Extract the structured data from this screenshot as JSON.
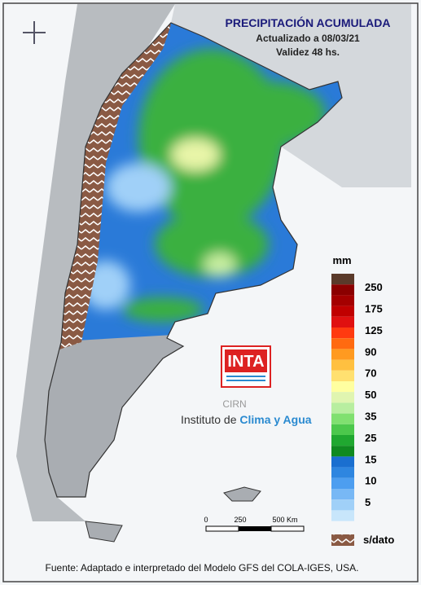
{
  "header": {
    "title": "PRECIPITACIÓN ACUMULADA",
    "updated": "Actualizado a 08/03/21",
    "validity": "Validez 48 hs."
  },
  "legend": {
    "unit": "mm",
    "labels": [
      "250",
      "175",
      "125",
      "90",
      "70",
      "50",
      "35",
      "25",
      "15",
      "10",
      "5"
    ],
    "colors": [
      "#5a3a2a",
      "#8b0000",
      "#a40000",
      "#c00000",
      "#e01010",
      "#ff3a10",
      "#ff6a10",
      "#ff9a20",
      "#ffc040",
      "#ffe070",
      "#ffffa0",
      "#e0f5b0",
      "#b8eea0",
      "#80e070",
      "#4cc84c",
      "#20a830",
      "#108a20",
      "#1a6fd0",
      "#2e86e0",
      "#4d9ef0",
      "#78b8f5",
      "#a0d0f8",
      "#c8e6fb"
    ],
    "no_data": "s/dato"
  },
  "scale": {
    "labels": [
      "0",
      "250",
      "500 Km"
    ]
  },
  "logo": {
    "brand": "INTA",
    "center": "CIRN",
    "institute": "Instituto de ",
    "institute_highlight": "Clima y Agua"
  },
  "footer": {
    "source": "Fuente: Adaptado e interpretado del Modelo GFS del COLA-IGES, USA."
  }
}
